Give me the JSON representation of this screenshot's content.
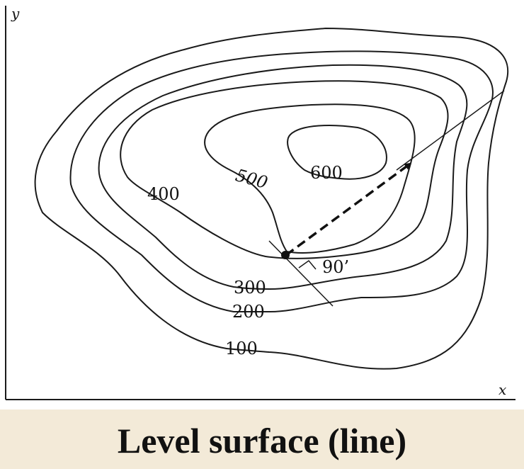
{
  "diagram": {
    "axes": {
      "x_label": "x",
      "y_label": "y"
    },
    "contour_levels": [
      {
        "label": "100"
      },
      {
        "label": "200"
      },
      {
        "label": "300"
      },
      {
        "label": "400"
      },
      {
        "label": "500"
      },
      {
        "label": "600"
      }
    ],
    "angle_label": "90’"
  },
  "caption": "Level surface (line)"
}
